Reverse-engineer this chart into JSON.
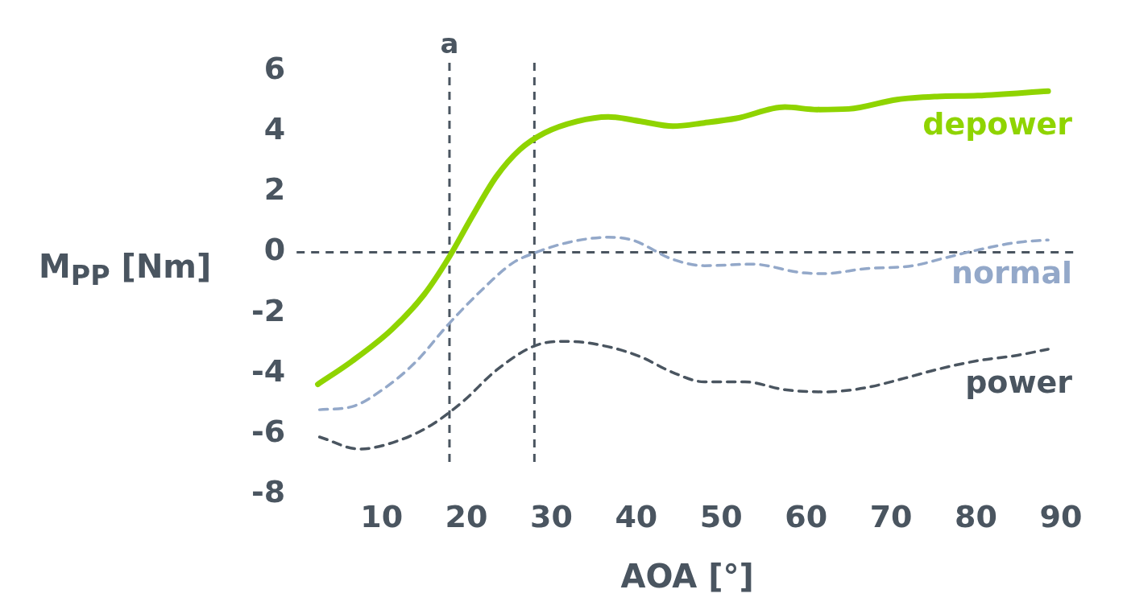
{
  "chart_data": {
    "type": "line",
    "xlabel": "AOA [°]",
    "ylabel": "M$_{PP}$ [Nm]",
    "xlim": [
      0,
      92
    ],
    "xticks": [
      10,
      20,
      30,
      40,
      50,
      60,
      70,
      80,
      90
    ],
    "ylim": [
      -8,
      6
    ],
    "yticks": [
      -8,
      -6,
      -4,
      -2,
      0,
      2,
      4,
      6
    ],
    "series": [
      {
        "name": "depower",
        "color": "#8fd400",
        "line_style": "solid",
        "x": [
          2.5,
          6.5,
          11.2,
          15,
          17.8,
          20.7,
          23.5,
          26.3,
          29.2,
          33,
          36.7,
          40.5,
          44.3,
          48,
          51.8,
          57.5,
          61.3,
          65,
          70.7,
          75.4,
          80.2,
          88.5
        ],
        "values": [
          -4.36,
          -3.6,
          -2.55,
          -1.4,
          -0.23,
          1.2,
          2.5,
          3.4,
          3.95,
          4.33,
          4.48,
          4.33,
          4.17,
          4.28,
          4.43,
          4.8,
          4.72,
          4.74,
          5.05,
          5.15,
          5.18,
          5.33
        ]
      },
      {
        "name": "normal",
        "color": "#93a8c9",
        "line_style": "dashed",
        "x": [
          2.7,
          6.5,
          10.3,
          14.1,
          17.8,
          21.6,
          25.4,
          28.2,
          32,
          36.7,
          39.6,
          44.3,
          48,
          53.7,
          59.4,
          62.2,
          66.9,
          72.6,
          76.4,
          80.2,
          84.9,
          88.5
        ],
        "values": [
          -5.2,
          -5.1,
          -4.5,
          -3.6,
          -2.4,
          -1.3,
          -0.36,
          0,
          0.33,
          0.5,
          0.4,
          -0.23,
          -0.44,
          -0.39,
          -0.67,
          -0.7,
          -0.54,
          -0.44,
          -0.18,
          0.08,
          0.33,
          0.41
        ]
      },
      {
        "name": "power",
        "color": "#4a5560",
        "line_style": "dashed",
        "x": [
          2.7,
          7.4,
          12.2,
          15.9,
          19.7,
          23.5,
          28.2,
          32,
          36.7,
          40.5,
          44.3,
          48,
          52.8,
          57.5,
          62.2,
          66.9,
          71.7,
          75.4,
          80.2,
          84.9,
          88.5
        ],
        "values": [
          -6.1,
          -6.5,
          -6.2,
          -5.7,
          -4.9,
          -3.9,
          -3.07,
          -2.94,
          -3.12,
          -3.45,
          -3.97,
          -4.28,
          -4.28,
          -4.54,
          -4.61,
          -4.48,
          -4.15,
          -3.87,
          -3.58,
          -3.4,
          -3.2
        ]
      }
    ],
    "ref_lines": [
      {
        "axis": "x",
        "value": 18,
        "label": "a",
        "color": "#4a5560",
        "line_style": "dashed"
      },
      {
        "axis": "x",
        "value": 28,
        "color": "#4a5560",
        "line_style": "dashed"
      },
      {
        "axis": "y",
        "value": 0,
        "color": "#4a5560",
        "line_style": "dashed"
      }
    ]
  }
}
